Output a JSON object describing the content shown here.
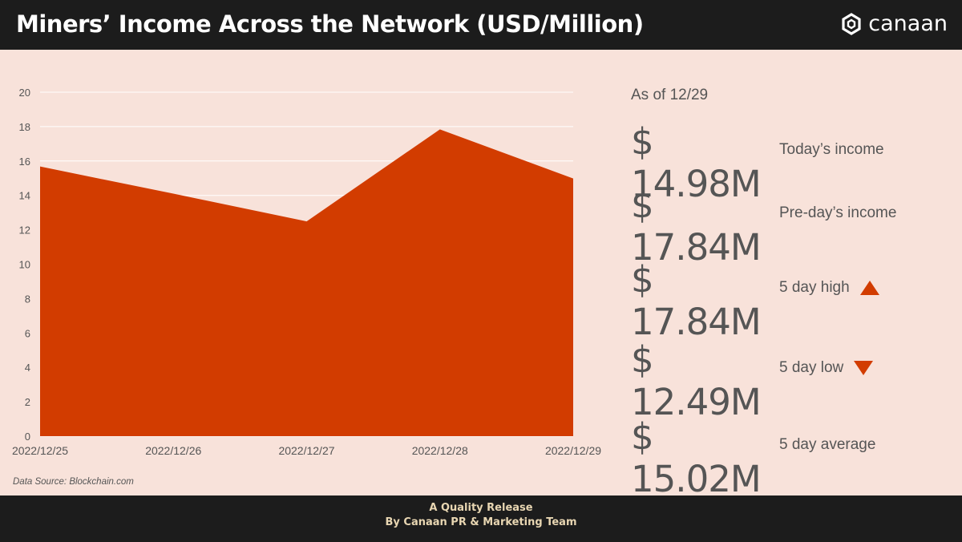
{
  "header": {
    "title": "Miners’ Income Across the Network (USD/Million)",
    "brand": "canaan"
  },
  "chart_data": {
    "type": "area",
    "x": [
      "2022/12/25",
      "2022/12/26",
      "2022/12/27",
      "2022/12/28",
      "2022/12/29"
    ],
    "values": [
      15.68,
      14.1,
      12.49,
      17.84,
      14.98
    ],
    "ylim": [
      0,
      20
    ],
    "yticks": [
      0,
      2,
      4,
      6,
      8,
      10,
      12,
      14,
      16,
      18,
      20
    ],
    "grid": true,
    "color": "#d23c00"
  },
  "source": "Data Source: Blockchain.com",
  "stats": {
    "as_of": "As of 12/29",
    "items": [
      {
        "value": "$ 14.98M",
        "label": "Today’s income"
      },
      {
        "value": "$ 17.84M",
        "label": "Pre-day’s income"
      },
      {
        "value": "$ 17.84M",
        "label": "5 day high",
        "icon": "triangle-up-icon"
      },
      {
        "value": "$ 12.49M",
        "label": "5 day low",
        "icon": "triangle-down-icon"
      },
      {
        "value": "$ 15.02M",
        "label": "5 day average"
      }
    ]
  },
  "footer": {
    "line1": "A Quality Release",
    "line2": "By Canaan PR & Marketing Team"
  }
}
